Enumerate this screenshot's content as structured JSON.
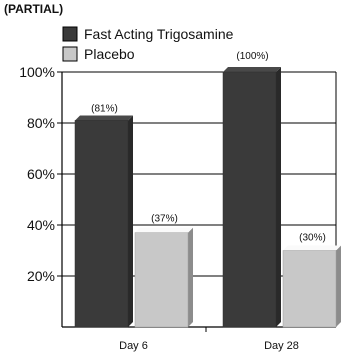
{
  "chart_data": {
    "type": "bar",
    "title": "(PARTIAL) ",
    "categories": [
      "Day 6",
      "Day 28"
    ],
    "series": [
      {
        "name": "Fast Acting Trigosamine",
        "values": [
          81,
          100
        ],
        "labels": [
          "(81%)",
          "(100%)"
        ],
        "color": "#3a3a3a"
      },
      {
        "name": "Placebo",
        "values": [
          37,
          30
        ],
        "labels": [
          "(37%)",
          "(30%)"
        ],
        "color": "#c8c8c8"
      }
    ],
    "ylim": [
      0,
      100
    ],
    "yticks": [
      20,
      40,
      60,
      80,
      100
    ],
    "ytick_labels": [
      "20%",
      "40%",
      "60%",
      "80%",
      "100%"
    ],
    "grid": true,
    "legend_position": "top-left",
    "xlabel": "",
    "ylabel": ""
  }
}
